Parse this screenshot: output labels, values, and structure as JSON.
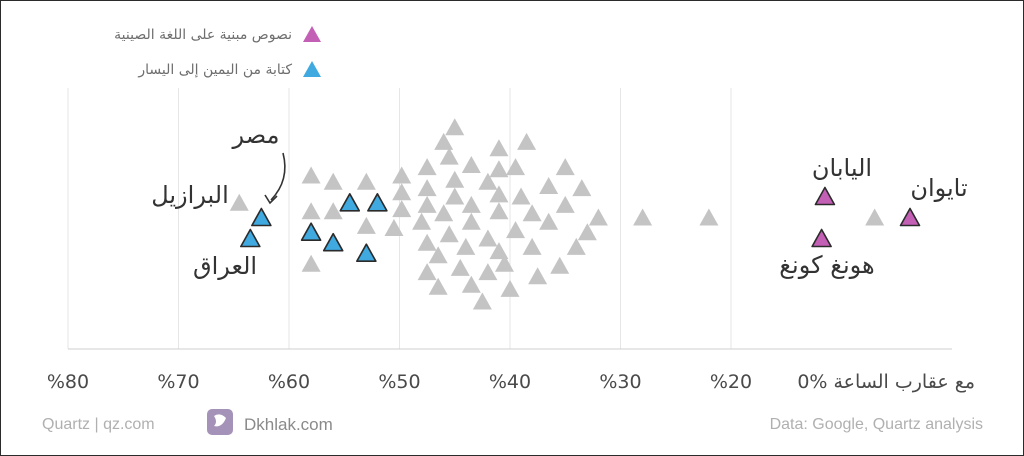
{
  "chart_data": {
    "type": "scatter",
    "xlabel": "",
    "ylabel": "",
    "xlim": [
      0,
      80
    ],
    "x_tick_labels": [
      "0% مع عقارب الساعة",
      "%20",
      "%30",
      "%40",
      "%50",
      "%60",
      "%70",
      "%80"
    ],
    "x_ticks": [
      0,
      20,
      30,
      40,
      50,
      60,
      70,
      80
    ],
    "grid": true,
    "legend_position": "top-right",
    "legend": [
      {
        "label": "نصوص مبنية على اللغة الصينية",
        "color": "#c45fb6"
      },
      {
        "label": "كتابة من اليمين إلى اليسار",
        "color": "#3fa9e0"
      }
    ],
    "colors": {
      "other": "#c4c4c4",
      "chinese": "#c45fb6",
      "rtl": "#3fa9e0"
    },
    "series": [
      {
        "name": "نصوص مبنية على اللغة الصينية",
        "color": "#c45fb6",
        "points": [
          {
            "x": 3.8,
            "lane": 0
          },
          {
            "x": 11.5,
            "lane": 1
          },
          {
            "x": 11.8,
            "lane": -1
          }
        ]
      },
      {
        "name": "كتابة من اليمين إلى اليسار",
        "color": "#3fa9e0",
        "points": [
          {
            "x": 62.5,
            "lane": 0
          },
          {
            "x": 63.5,
            "lane": -1
          },
          {
            "x": 58,
            "lane": -0.7
          },
          {
            "x": 56,
            "lane": -1.2
          },
          {
            "x": 54.5,
            "lane": 0.7
          },
          {
            "x": 52,
            "lane": 0.7
          },
          {
            "x": 53,
            "lane": -1.7
          }
        ]
      },
      {
        "name": "",
        "color": "#c4c4c4",
        "points": [
          {
            "x": 64.5,
            "lane": 0.7
          },
          {
            "x": 58,
            "lane": 2
          },
          {
            "x": 58,
            "lane": 0.3
          },
          {
            "x": 58,
            "lane": -2.2
          },
          {
            "x": 56,
            "lane": 1.7
          },
          {
            "x": 56,
            "lane": 0.3
          },
          {
            "x": 53,
            "lane": 1.7
          },
          {
            "x": 53,
            "lane": -0.4
          },
          {
            "x": 50.5,
            "lane": -0.5
          },
          {
            "x": 49.8,
            "lane": 2
          },
          {
            "x": 49.8,
            "lane": 1.2
          },
          {
            "x": 49.8,
            "lane": 0.4
          },
          {
            "x": 48,
            "lane": -0.2
          },
          {
            "x": 47.5,
            "lane": 2.4
          },
          {
            "x": 47.5,
            "lane": 1.4
          },
          {
            "x": 47.5,
            "lane": 0.6
          },
          {
            "x": 47.5,
            "lane": -1.2
          },
          {
            "x": 47.5,
            "lane": -2.6
          },
          {
            "x": 46.5,
            "lane": -3.3
          },
          {
            "x": 46.5,
            "lane": -1.8
          },
          {
            "x": 46,
            "lane": 3.6
          },
          {
            "x": 46,
            "lane": 0.2
          },
          {
            "x": 45.5,
            "lane": 2.9
          },
          {
            "x": 45.5,
            "lane": -0.8
          },
          {
            "x": 45,
            "lane": 4.3
          },
          {
            "x": 45,
            "lane": 1.8
          },
          {
            "x": 45,
            "lane": 1
          },
          {
            "x": 44.5,
            "lane": -2.4
          },
          {
            "x": 44,
            "lane": -1.4
          },
          {
            "x": 43.5,
            "lane": 2.5
          },
          {
            "x": 43.5,
            "lane": 0.6
          },
          {
            "x": 43.5,
            "lane": -0.2
          },
          {
            "x": 43.5,
            "lane": -3.2
          },
          {
            "x": 42.5,
            "lane": -4
          },
          {
            "x": 42,
            "lane": 1.7
          },
          {
            "x": 42,
            "lane": -1
          },
          {
            "x": 42,
            "lane": -2.6
          },
          {
            "x": 41,
            "lane": 3.3
          },
          {
            "x": 41,
            "lane": 2.3
          },
          {
            "x": 41,
            "lane": 1.1
          },
          {
            "x": 41,
            "lane": 0.3
          },
          {
            "x": 41,
            "lane": -1.6
          },
          {
            "x": 40.5,
            "lane": -2.2
          },
          {
            "x": 40,
            "lane": -3.4
          },
          {
            "x": 39.5,
            "lane": 2.4
          },
          {
            "x": 39.5,
            "lane": -0.6
          },
          {
            "x": 39,
            "lane": 1
          },
          {
            "x": 38.5,
            "lane": 3.6
          },
          {
            "x": 38,
            "lane": 0.2
          },
          {
            "x": 38,
            "lane": -1.4
          },
          {
            "x": 37.5,
            "lane": -2.8
          },
          {
            "x": 36.5,
            "lane": 1.5
          },
          {
            "x": 36.5,
            "lane": -0.2
          },
          {
            "x": 35.5,
            "lane": -2.3
          },
          {
            "x": 35,
            "lane": 2.4
          },
          {
            "x": 35,
            "lane": 0.6
          },
          {
            "x": 34,
            "lane": -1.4
          },
          {
            "x": 33.5,
            "lane": 1.4
          },
          {
            "x": 33,
            "lane": -0.7
          },
          {
            "x": 32,
            "lane": 0
          },
          {
            "x": 28,
            "lane": 0
          },
          {
            "x": 22,
            "lane": 0
          },
          {
            "x": 7,
            "lane": 0
          }
        ]
      }
    ],
    "annotations": [
      {
        "text": "تايوان",
        "color": "#333333"
      },
      {
        "text": "اليابان",
        "color": "#333333"
      },
      {
        "text": "هونغ كونغ",
        "color": "#333333"
      },
      {
        "text": "مصر",
        "color": "#333333"
      },
      {
        "text": "البرازيل",
        "color": "#333333"
      },
      {
        "text": "العراق",
        "color": "#333333"
      }
    ]
  },
  "footer": {
    "left": "Quartz | qz.com",
    "logo_text": "Dkhlak.com",
    "right": "Data: Google, Quartz analysis"
  }
}
